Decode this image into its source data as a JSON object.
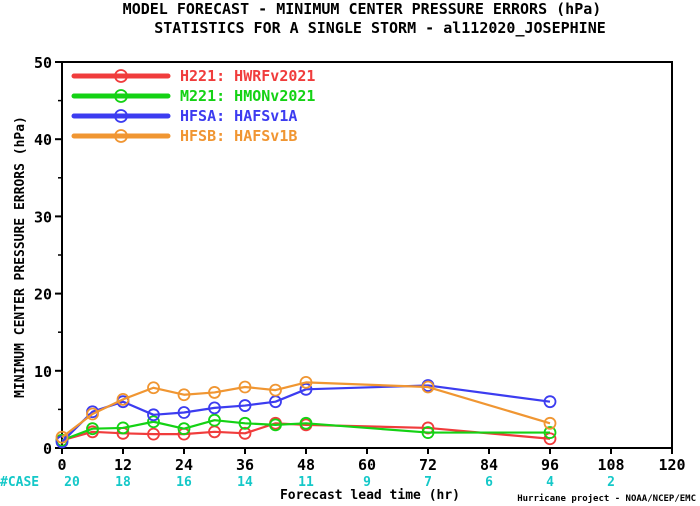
{
  "chart_data": {
    "type": "line",
    "title": [
      "MODEL FORECAST - MINIMUM CENTER PRESSURE ERRORS (hPa)",
      "STATISTICS FOR A SINGLE STORM - al112020_JOSEPHINE"
    ],
    "xlabel": "Forecast lead time (hr)",
    "ylabel": "MINIMUM CENTER PRESSURE ERRORS (hPa)",
    "xlim": [
      0,
      120
    ],
    "ylim": [
      0,
      50
    ],
    "x_ticks": [
      0,
      12,
      24,
      36,
      48,
      60,
      72,
      84,
      96,
      108,
      120
    ],
    "y_ticks": [
      0,
      10,
      20,
      30,
      40,
      50
    ],
    "grid": false,
    "legend_position": "top-left",
    "cases": {
      "label": "#CASE",
      "x": [
        0,
        12,
        24,
        36,
        48,
        60,
        72,
        84,
        96,
        108
      ],
      "values": [
        "20",
        "18",
        "16",
        "14",
        "11",
        "9",
        "7",
        "6",
        "4",
        "2"
      ]
    },
    "credit": "Hurricane project - NOAA/NCEP/EMC",
    "series": [
      {
        "name": "H221: HWRFv2021",
        "color": "#f03c3c",
        "x": [
          0,
          6,
          12,
          18,
          24,
          30,
          36,
          42,
          48,
          72,
          96
        ],
        "y": [
          1.0,
          2.1,
          1.9,
          1.8,
          1.8,
          2.1,
          1.9,
          3.2,
          3.0,
          2.6,
          1.2
        ]
      },
      {
        "name": "M221: HMONv2021",
        "color": "#14d214",
        "x": [
          0,
          6,
          12,
          18,
          24,
          30,
          36,
          42,
          48,
          72,
          96
        ],
        "y": [
          1.0,
          2.5,
          2.6,
          3.4,
          2.5,
          3.6,
          3.2,
          3.0,
          3.2,
          2.0,
          2.0
        ]
      },
      {
        "name": "HFSA: HAFSv1A",
        "color": "#3c3cf0",
        "x": [
          0,
          6,
          12,
          18,
          24,
          30,
          36,
          42,
          48,
          72,
          96
        ],
        "y": [
          0.8,
          4.7,
          6.0,
          4.3,
          4.6,
          5.2,
          5.5,
          6.0,
          7.6,
          8.1,
          6.0
        ]
      },
      {
        "name": "HFSB: HAFSv1B",
        "color": "#f09632",
        "x": [
          0,
          6,
          12,
          18,
          24,
          30,
          36,
          42,
          48,
          72,
          96
        ],
        "y": [
          1.4,
          4.4,
          6.3,
          7.8,
          6.9,
          7.2,
          7.9,
          7.5,
          8.5,
          7.9,
          3.2
        ]
      }
    ],
    "case_label_color": "#14c8c8"
  }
}
